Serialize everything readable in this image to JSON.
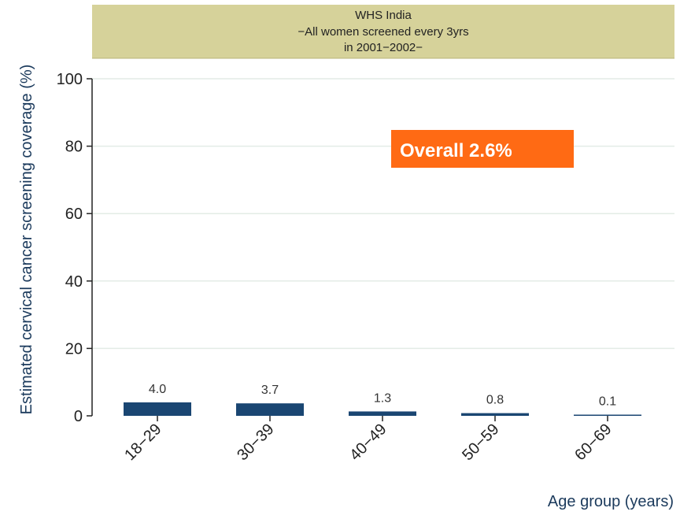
{
  "chart_data": {
    "type": "bar",
    "header_lines": [
      "WHS India",
      "−All women screened every 3yrs",
      "in 2001−2002−"
    ],
    "categories": [
      "18−29",
      "30−39",
      "40−49",
      "50−59",
      "60−69"
    ],
    "values": [
      4.0,
      3.7,
      1.3,
      0.8,
      0.1
    ],
    "data_labels": [
      "4.0",
      "3.7",
      "1.3",
      "0.8",
      "0.1"
    ],
    "xlabel": "Age group (years)",
    "ylabel": "Estimated cervical cancer screening coverage (%)",
    "ylim": [
      0,
      100
    ],
    "yticks": [
      "0",
      "20",
      "40",
      "60",
      "80",
      "100"
    ],
    "grid": true,
    "annotation": "Overall 2.6%",
    "colors": {
      "bar": "#1a4672",
      "header_bg": "#d6d29a",
      "annotation_bg": "#ff6a14",
      "axis_title": "#1b3a5c",
      "grid": "#e3ece6"
    }
  }
}
